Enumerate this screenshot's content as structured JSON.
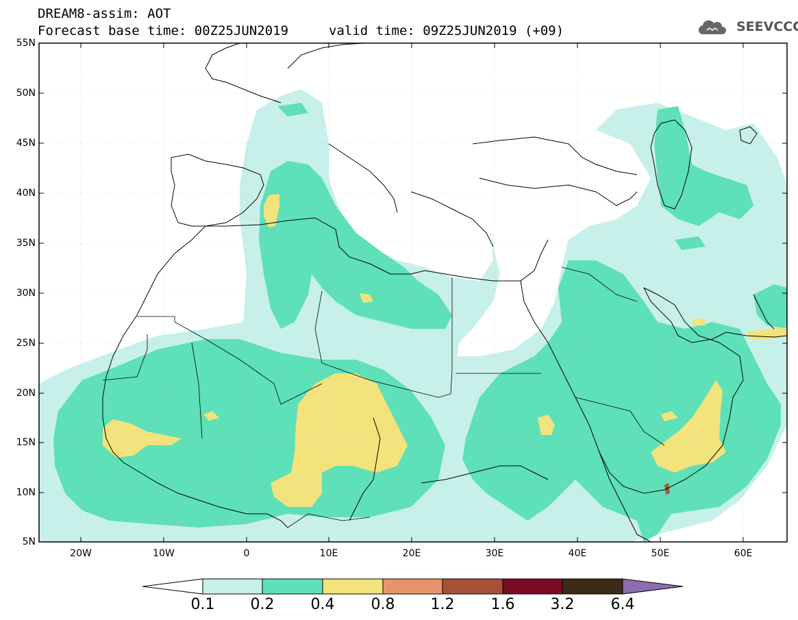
{
  "header": {
    "title": "DREAM8-assim: AOT",
    "base_time": "Forecast base time: 00Z25JUN2019",
    "valid_time": "valid time: 09Z25JUN2019 (+09)",
    "logo_text": "SEEVCCC",
    "logo_icon": "cloud-icon"
  },
  "map": {
    "lat_ticks": [
      "55N",
      "50N",
      "45N",
      "40N",
      "35N",
      "30N",
      "25N",
      "20N",
      "15N",
      "10N",
      "5N"
    ],
    "lon_ticks": [
      "20W",
      "10W",
      "0",
      "10E",
      "20E",
      "30E",
      "40E",
      "50E",
      "60E"
    ],
    "lat_range": [
      5,
      55
    ],
    "lon_range": [
      -25,
      65
    ]
  },
  "colorbar": {
    "labels": [
      "0.1",
      "0.2",
      "0.4",
      "0.8",
      "1.2",
      "1.6",
      "3.2",
      "6.4"
    ],
    "colors": [
      "#ffffff",
      "#c8f0eb",
      "#5ee0b8",
      "#f2e37c",
      "#e8946a",
      "#a8503a",
      "#7b0a24",
      "#3d2a17",
      "#8e6cb0"
    ]
  },
  "colors": {
    "level1": "#c8f0eb",
    "level2": "#5ee0b8",
    "level3": "#f2e37c",
    "level4": "#a8503a"
  }
}
